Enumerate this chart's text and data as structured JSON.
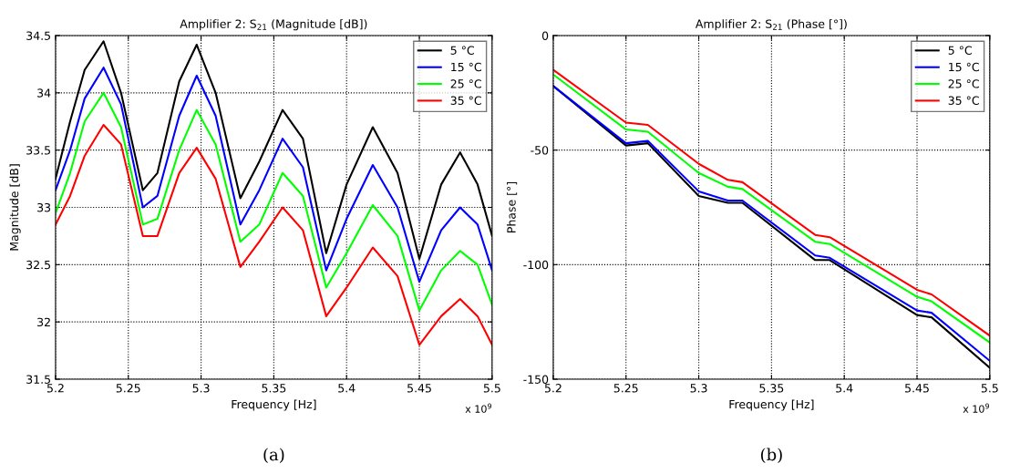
{
  "chart_data": [
    {
      "type": "line",
      "title": "Amplifier 2: S$_{21}$ (Magnitude [dB])",
      "xlabel": "Frequency [Hz]",
      "ylabel": "Magnitude [dB]",
      "x": [
        5.2,
        5.21,
        5.22,
        5.233,
        5.245,
        5.26,
        5.27,
        5.285,
        5.297,
        5.31,
        5.327,
        5.34,
        5.356,
        5.37,
        5.386,
        5.4,
        5.418,
        5.435,
        5.45,
        5.465,
        5.478,
        5.49,
        5.5
      ],
      "series": [
        {
          "name": "5 °C",
          "color": "#000000",
          "values": [
            33.25,
            33.75,
            34.2,
            34.45,
            34.0,
            33.15,
            33.3,
            34.1,
            34.42,
            34.0,
            33.08,
            33.4,
            33.85,
            33.6,
            32.6,
            33.2,
            33.7,
            33.3,
            32.55,
            33.2,
            33.48,
            33.2,
            32.75
          ]
        },
        {
          "name": "15 °C",
          "color": "#0000ff",
          "values": [
            33.15,
            33.5,
            33.95,
            34.22,
            33.9,
            33.0,
            33.1,
            33.8,
            34.15,
            33.8,
            32.85,
            33.15,
            33.6,
            33.35,
            32.45,
            32.9,
            33.37,
            33.0,
            32.35,
            32.8,
            33.0,
            32.85,
            32.45
          ]
        },
        {
          "name": "25 °C",
          "color": "#00ff00",
          "values": [
            32.95,
            33.3,
            33.75,
            34.0,
            33.7,
            32.85,
            32.9,
            33.5,
            33.85,
            33.55,
            32.7,
            32.85,
            33.3,
            33.1,
            32.3,
            32.6,
            33.02,
            32.75,
            32.1,
            32.45,
            32.62,
            32.5,
            32.15
          ]
        },
        {
          "name": "35 °C",
          "color": "#ff0000",
          "values": [
            32.85,
            33.1,
            33.45,
            33.72,
            33.55,
            32.75,
            32.75,
            33.3,
            33.52,
            33.25,
            32.48,
            32.7,
            33.0,
            32.8,
            32.05,
            32.3,
            32.65,
            32.4,
            31.8,
            32.05,
            32.2,
            32.05,
            31.8
          ]
        }
      ],
      "xlim": [
        5.2,
        5.5
      ],
      "xticks": [
        5.2,
        5.25,
        5.3,
        5.35,
        5.4,
        5.45,
        5.5
      ],
      "ylim": [
        31.5,
        34.5
      ],
      "yticks": [
        31.5,
        32,
        32.5,
        33,
        33.5,
        34,
        34.5
      ],
      "grid": true,
      "legend": "top right",
      "line_style": "solid",
      "annotations": [
        "x 10$^{9}$",
        "(a)"
      ]
    },
    {
      "type": "line",
      "title": "Amplifier 2: S$_{21}$ (Phase [°])",
      "xlabel": "Frequency [Hz]",
      "ylabel": "Phase [°]",
      "x": [
        5.2,
        5.25,
        5.265,
        5.3,
        5.32,
        5.33,
        5.38,
        5.39,
        5.45,
        5.46,
        5.5
      ],
      "series": [
        {
          "name": "5 °C",
          "color": "#000000",
          "values": [
            -22,
            -48,
            -47,
            -70,
            -73,
            -73,
            -98,
            -98,
            -122,
            -123,
            -145
          ]
        },
        {
          "name": "15 °C",
          "color": "#0000ff",
          "values": [
            -22,
            -47,
            -46,
            -68,
            -72,
            -72,
            -96,
            -97,
            -120,
            -121,
            -142
          ]
        },
        {
          "name": "25 °C",
          "color": "#00ff00",
          "values": [
            -17,
            -41,
            -42,
            -60,
            -66,
            -67,
            -90,
            -91,
            -114,
            -116,
            -134
          ]
        },
        {
          "name": "35 °C",
          "color": "#ff0000",
          "values": [
            -15,
            -38,
            -39,
            -56,
            -63,
            -64,
            -87,
            -88,
            -111,
            -113,
            -131
          ]
        }
      ],
      "xlim": [
        5.2,
        5.5
      ],
      "xticks": [
        5.2,
        5.25,
        5.3,
        5.35,
        5.4,
        5.45,
        5.5
      ],
      "ylim": [
        -150,
        0
      ],
      "yticks": [
        -150,
        -100,
        -50,
        0
      ],
      "grid": true,
      "legend": "top right",
      "line_style": "solid",
      "annotations": [
        "x 10$^{9}$",
        "(b)"
      ]
    }
  ]
}
